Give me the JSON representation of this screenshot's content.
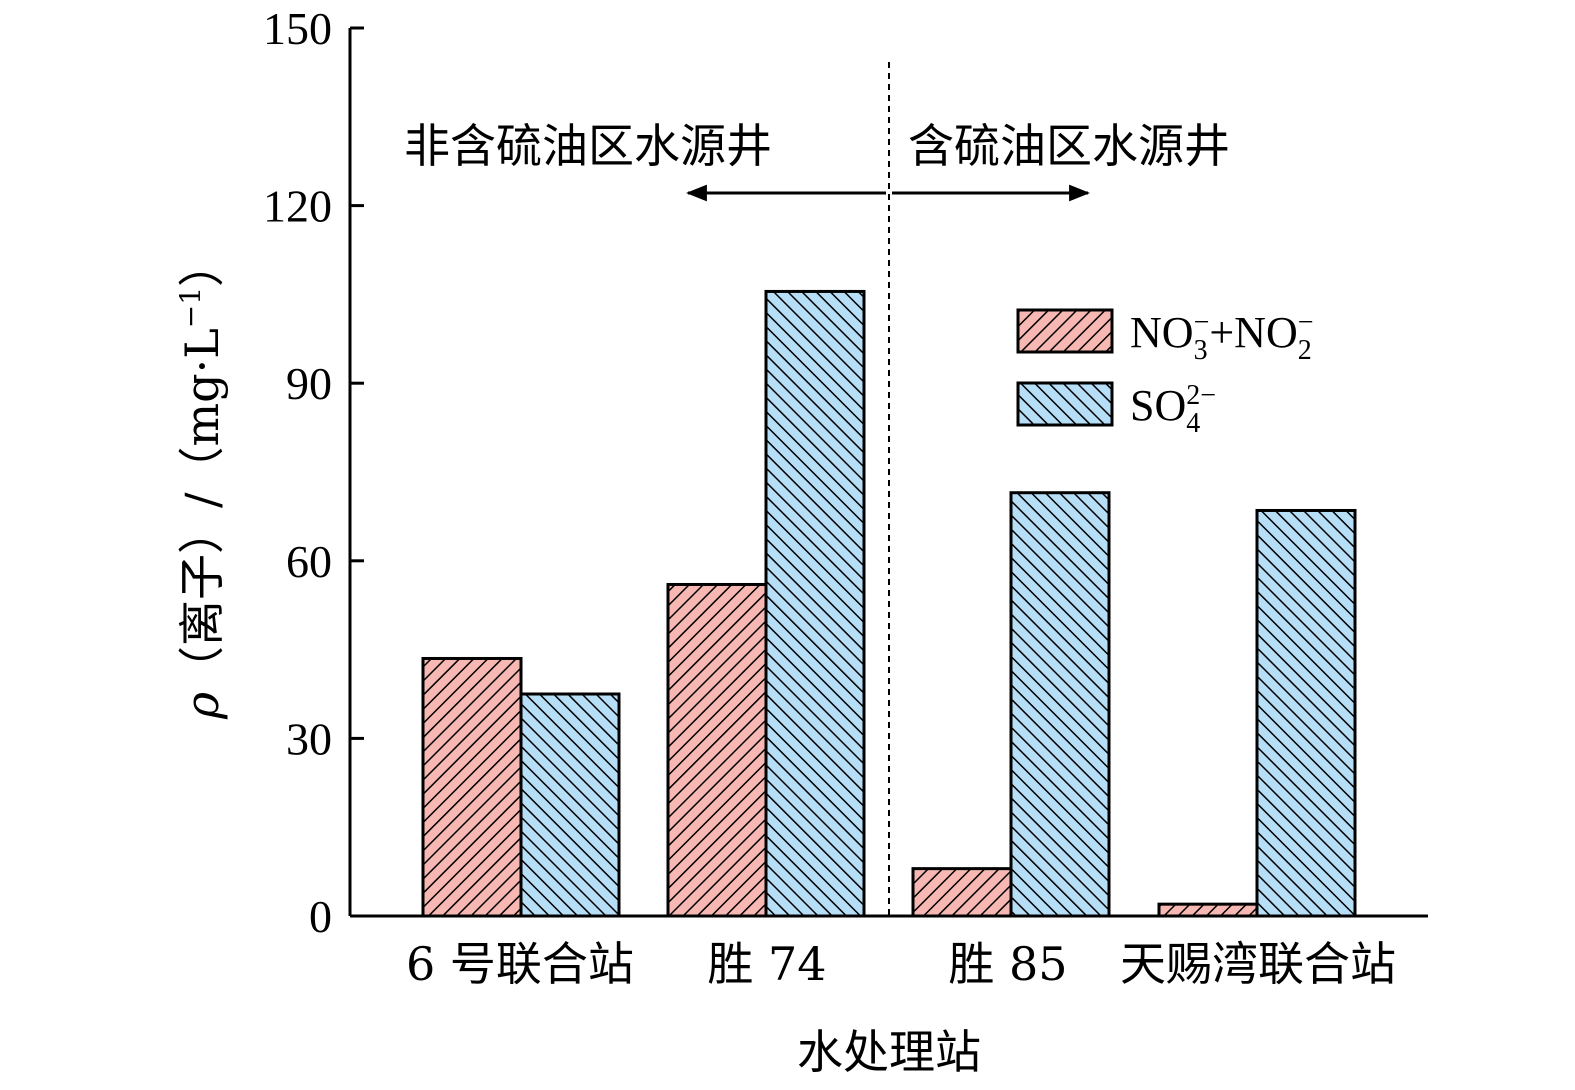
{
  "chart_data": {
    "type": "bar",
    "categories": [
      "6 号联合站",
      "胜 74",
      "胜 85",
      "天赐湾联合站"
    ],
    "series": [
      {
        "legend_main": "NO",
        "legend_sub1": "3",
        "legend_sup1": "−",
        "legend_mid": "+NO",
        "legend_sub2": "2",
        "legend_sup2": "−",
        "values": [
          43.5,
          56,
          8,
          2
        ],
        "color": "#f7b7b2"
      },
      {
        "legend_main": "SO",
        "legend_sub1": "4",
        "legend_sup1": "2−",
        "values": [
          37.5,
          105.5,
          71.5,
          68.5
        ],
        "color": "#b6def7"
      }
    ],
    "xlabel": "水处理站",
    "ylabel_rho": "ρ",
    "ylabel_text": "（离子）/（mg·L",
    "ylabel_exp": "−1",
    "ylabel_close": "）",
    "ylim": [
      0,
      150
    ],
    "yticks": [
      "0",
      "30",
      "60",
      "90",
      "120",
      "150"
    ],
    "annotations": {
      "left_region": "非含硫油区水源井",
      "right_region": "含硫油区水源井"
    },
    "legend_position": "top-right",
    "grid": false
  }
}
